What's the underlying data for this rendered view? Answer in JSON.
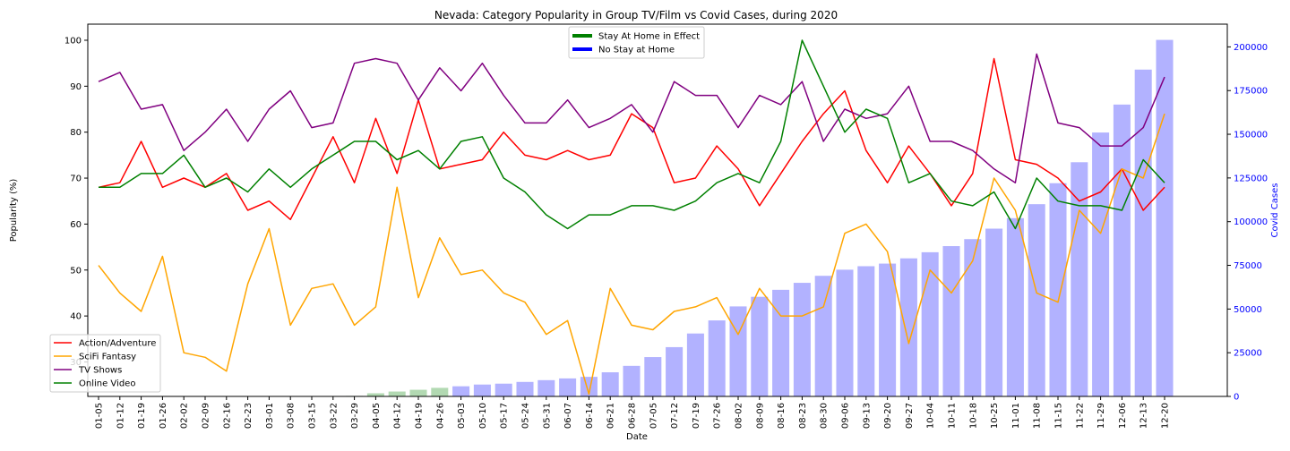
{
  "chart_data": {
    "type": "bar+line",
    "title": "Nevada: Category Popularity in Group TV/Film vs Covid Cases, during 2020",
    "xlabel": "Date",
    "ylabel": "Popularity (%)",
    "y2label": "Covid Cases",
    "ylim": [
      22.5,
      103.5
    ],
    "y_ticks": [
      30,
      40,
      50,
      60,
      70,
      80,
      90,
      100
    ],
    "y2lim": [
      0,
      213000
    ],
    "y2_ticks": [
      0,
      25000,
      50000,
      75000,
      100000,
      125000,
      150000,
      175000,
      200000
    ],
    "grid": false,
    "colors": {
      "action": "#ff0000",
      "scifi": "#ffa500",
      "tv": "#800080",
      "online": "#008000",
      "bars_no_stay": "#0000ff",
      "bars_stay": "#008000",
      "y2_axis": "#0000ff"
    },
    "categories": [
      "01-05",
      "01-12",
      "01-19",
      "01-26",
      "02-02",
      "02-09",
      "02-16",
      "02-23",
      "03-01",
      "03-08",
      "03-15",
      "03-22",
      "03-29",
      "04-05",
      "04-12",
      "04-19",
      "04-26",
      "05-03",
      "05-10",
      "05-17",
      "05-24",
      "05-31",
      "06-07",
      "06-14",
      "06-21",
      "06-28",
      "07-05",
      "07-12",
      "07-19",
      "07-26",
      "08-02",
      "08-09",
      "08-16",
      "08-23",
      "08-30",
      "09-06",
      "09-13",
      "09-20",
      "09-27",
      "10-04",
      "10-11",
      "10-18",
      "10-25",
      "11-01",
      "11-08",
      "11-15",
      "11-22",
      "11-29",
      "12-06",
      "12-13",
      "12-20"
    ],
    "series": [
      {
        "name": "Action/Adventure",
        "color": "#ff0000",
        "values": [
          68,
          69,
          78,
          68,
          70,
          68,
          71,
          63,
          65,
          61,
          70,
          79,
          69,
          83,
          71,
          87,
          72,
          73,
          74,
          80,
          75,
          74,
          76,
          74,
          75,
          84,
          81,
          69,
          70,
          77,
          72,
          64,
          71,
          78,
          84,
          89,
          76,
          69,
          77,
          71,
          64,
          71,
          96,
          74,
          73,
          70,
          65,
          67,
          72,
          63,
          68
        ]
      },
      {
        "name": "SciFi Fantasy",
        "color": "#ffa500",
        "values": [
          51,
          45,
          41,
          53,
          32,
          31,
          28,
          47,
          59,
          38,
          46,
          47,
          38,
          42,
          68,
          44,
          57,
          49,
          50,
          45,
          43,
          36,
          39,
          23,
          46,
          38,
          37,
          41,
          42,
          44,
          36,
          46,
          40,
          40,
          42,
          58,
          60,
          54,
          34,
          50,
          45,
          52,
          70,
          63,
          45,
          43,
          63,
          58,
          72,
          70,
          84
        ]
      },
      {
        "name": "TV Shows",
        "color": "#800080",
        "values": [
          91,
          93,
          85,
          86,
          76,
          80,
          85,
          78,
          85,
          89,
          81,
          82,
          95,
          96,
          95,
          87,
          94,
          89,
          95,
          88,
          82,
          82,
          87,
          81,
          83,
          86,
          80,
          91,
          88,
          88,
          81,
          88,
          86,
          91,
          78,
          85,
          83,
          84,
          90,
          78,
          78,
          76,
          72,
          69,
          97,
          82,
          81,
          77,
          77,
          81,
          92
        ]
      },
      {
        "name": "Online Video",
        "color": "#008000",
        "values": [
          68,
          68,
          71,
          71,
          75,
          68,
          70,
          67,
          72,
          68,
          72,
          75,
          78,
          78,
          74,
          76,
          72,
          78,
          79,
          70,
          67,
          62,
          59,
          62,
          62,
          64,
          64,
          63,
          65,
          69,
          71,
          69,
          78,
          100,
          90,
          80,
          85,
          83,
          69,
          71,
          65,
          64,
          67,
          59,
          70,
          65,
          64,
          64,
          63,
          74,
          69
        ]
      }
    ],
    "bars": {
      "name": "Covid Cases",
      "values": [
        0,
        0,
        0,
        0,
        0,
        0,
        0,
        0,
        0,
        0,
        0,
        0,
        300,
        1800,
        2800,
        3800,
        4900,
        5800,
        6800,
        7300,
        8300,
        9300,
        10300,
        11200,
        13800,
        17500,
        22500,
        28200,
        36000,
        43500,
        51500,
        57000,
        61000,
        65000,
        69000,
        72500,
        74500,
        76000,
        79000,
        82500,
        86000,
        90000,
        96000,
        102000,
        110000,
        122000,
        134000,
        151000,
        167000,
        187000,
        204000
      ],
      "stay_at_home": [
        false,
        false,
        false,
        false,
        false,
        false,
        false,
        false,
        false,
        false,
        false,
        false,
        true,
        true,
        true,
        true,
        true,
        false,
        false,
        false,
        false,
        false,
        false,
        false,
        false,
        false,
        false,
        false,
        false,
        false,
        false,
        false,
        false,
        false,
        false,
        false,
        false,
        false,
        false,
        false,
        false,
        false,
        false,
        false,
        false,
        false,
        false,
        false,
        false,
        false,
        false
      ]
    },
    "legend_top": {
      "placement": "top-center",
      "entries": [
        {
          "label": "Stay At Home in Effect",
          "color": "#008000"
        },
        {
          "label": "No Stay at Home",
          "color": "#0000ff"
        }
      ]
    },
    "legend_bottom": {
      "placement": "lower-left",
      "entries": [
        {
          "label": "Action/Adventure",
          "color": "#ff0000"
        },
        {
          "label": "SciFi Fantasy",
          "color": "#ffa500"
        },
        {
          "label": "TV Shows",
          "color": "#800080"
        },
        {
          "label": "Online Video",
          "color": "#008000"
        }
      ]
    }
  }
}
